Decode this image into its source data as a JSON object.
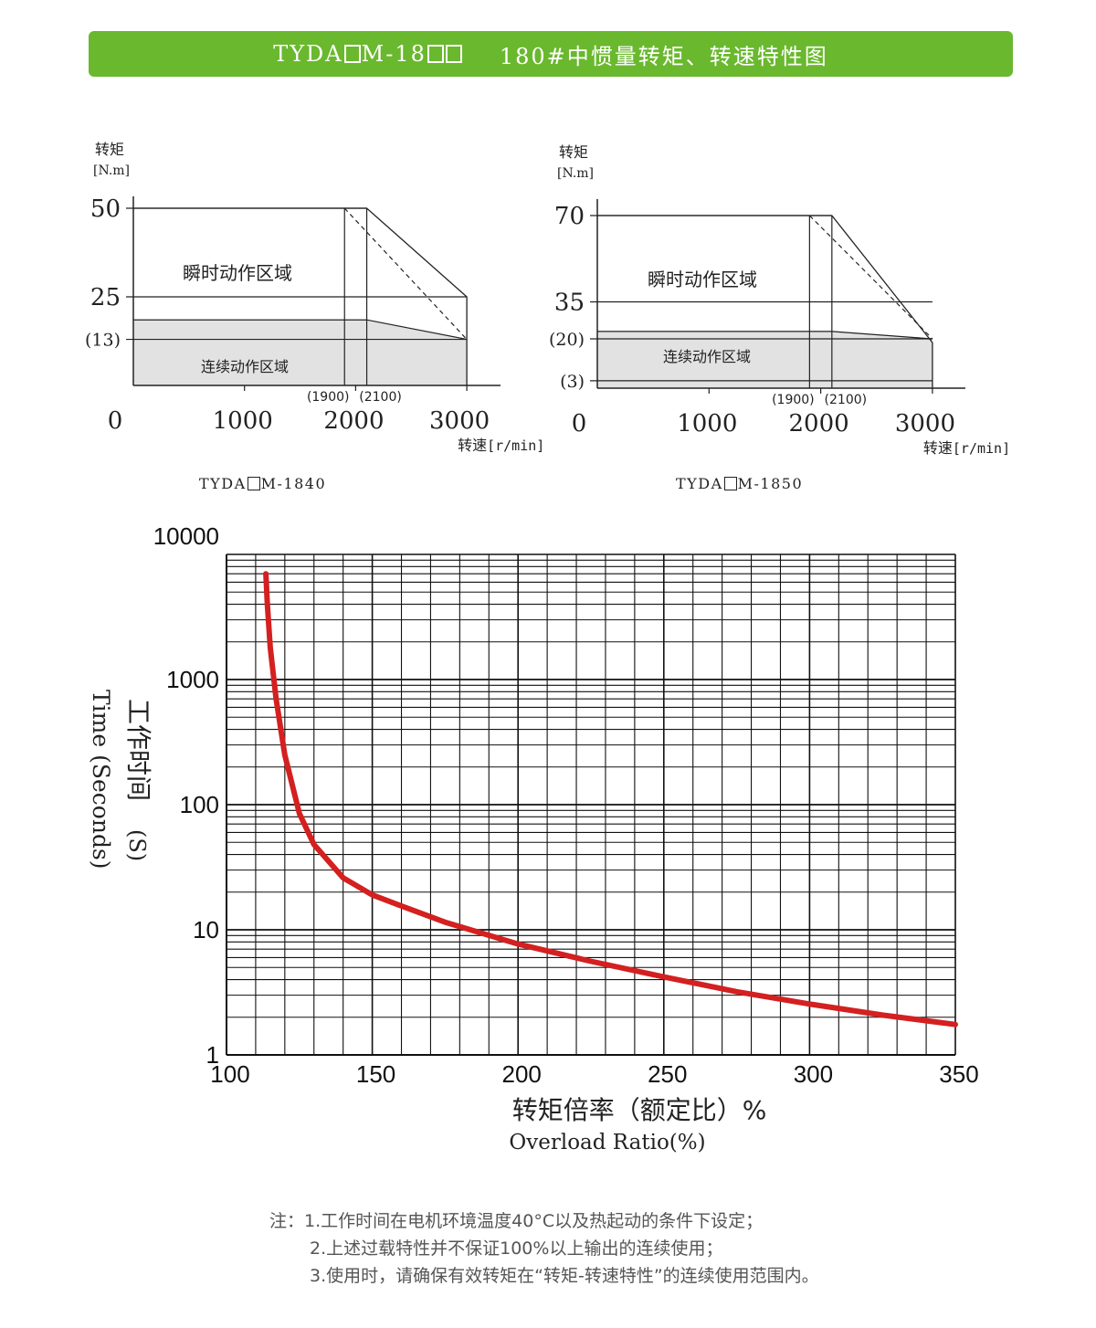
{
  "header": {
    "model_prefix": "TYDA",
    "model_mid": "M-18",
    "title": "180#中惯量转矩、转速特性图"
  },
  "chart_data": [
    {
      "type": "area",
      "model_prefix": "TYDA",
      "model_suffix": "M-1840",
      "ylabel": "转矩",
      "yunit": "[N.m]",
      "xlabel": "转速",
      "xunit": "[r/min]",
      "xlim": [
        0,
        3300
      ],
      "ylim": [
        0,
        54
      ],
      "x_ticks": [
        0,
        1000,
        2000,
        3000
      ],
      "x_tick_labels": [
        "0",
        "1000",
        "2000",
        "3000"
      ],
      "y_ticks": [
        50,
        25,
        13
      ],
      "y_tick_labels": [
        "50",
        "25",
        "(13)"
      ],
      "x_markers": [
        1900,
        2100
      ],
      "x_marker_labels": [
        "(1900)",
        "(2100)"
      ],
      "max_torque": 50,
      "rated_torque": 13,
      "continuous_torque_boundary": 18.5,
      "peak_torque_at_max_speed": 25,
      "max_speed": 3000,
      "region_labels": {
        "instant": "瞬时动作区域",
        "continuous": "连续动作区域"
      }
    },
    {
      "type": "area",
      "model_prefix": "TYDA",
      "model_suffix": "M-1850",
      "ylabel": "转矩",
      "yunit": "[N.m]",
      "xlabel": "转速",
      "xunit": "[r/min]",
      "xlim": [
        0,
        3300
      ],
      "ylim": [
        0,
        75
      ],
      "x_ticks": [
        0,
        1000,
        2000,
        3000
      ],
      "x_tick_labels": [
        "0",
        "1000",
        "2000",
        "3000"
      ],
      "y_ticks": [
        70,
        35,
        20,
        3
      ],
      "y_tick_labels": [
        "70",
        "35",
        "(20)",
        "(3)"
      ],
      "x_markers": [
        1900,
        2100
      ],
      "x_marker_labels": [
        "(1900)",
        "(2100)"
      ],
      "max_torque": 70,
      "rated_torque": 20,
      "continuous_torque_boundary": 23,
      "peak_torque_at_max_speed": 18.5,
      "max_speed": 3000,
      "region_labels": {
        "instant": "瞬时动作区域",
        "continuous": "连续动作区域"
      }
    },
    {
      "type": "line",
      "yscale": "log",
      "xlim": [
        100,
        350
      ],
      "ylim": [
        1,
        10000
      ],
      "x_ticks": [
        100,
        150,
        200,
        250,
        300,
        350
      ],
      "y_ticks": [
        1,
        10,
        100,
        1000,
        10000
      ],
      "y_tick_labels": [
        "1",
        "10",
        "100",
        "1000",
        "10000"
      ],
      "ylabel_en": "Time (Seconds)",
      "ylabel_cn": "工作时间",
      "ylabel_unit": "(S)",
      "xlabel_cn": "转矩倍率（额定比）%",
      "xlabel_en": "Overload Ratio(%)",
      "line_color": "#d42020",
      "series": [
        {
          "x": [
            113.5,
            114,
            115,
            117,
            120,
            125,
            130,
            140,
            150,
            160,
            175,
            200,
            225,
            250,
            275,
            300,
            325,
            350
          ],
          "y": [
            7000,
            4000,
            1800,
            700,
            250,
            85,
            48,
            26,
            19,
            15.5,
            11.5,
            7.7,
            5.6,
            4.2,
            3.2,
            2.55,
            2.08,
            1.75
          ]
        }
      ]
    }
  ],
  "notes": {
    "prefix": "注：",
    "items": [
      "1.工作时间在电机环境温度40°C以及热起动的条件下设定；",
      "2.上述过载特性并不保证100%以上输出的连续使用；",
      "3.使用时，请确保有效转矩在“转矩-转速特性”的连续使用范围内。"
    ]
  }
}
